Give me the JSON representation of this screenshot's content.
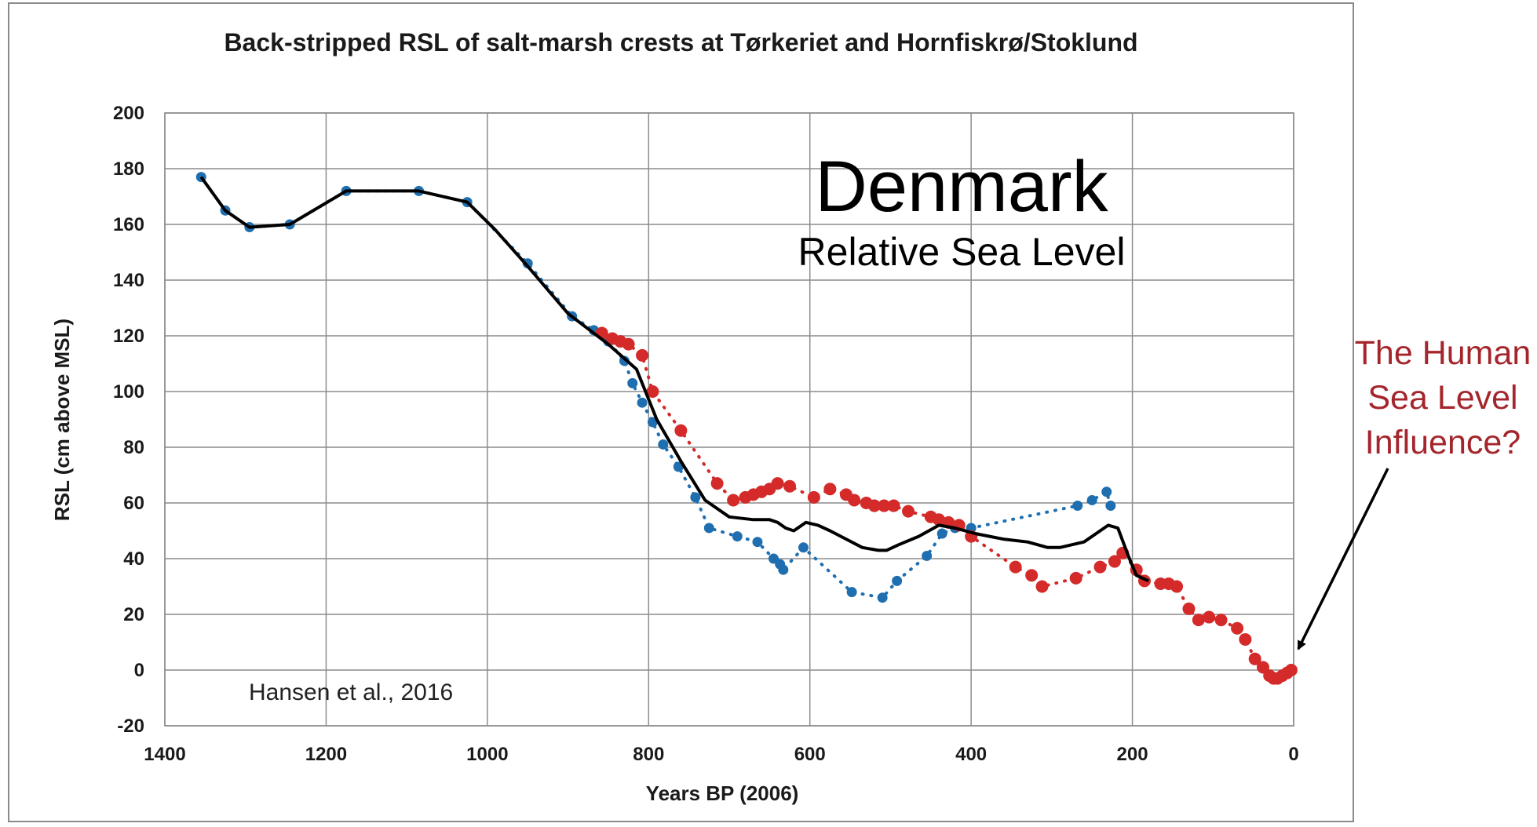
{
  "chart_data": {
    "type": "line",
    "title": "Back-stripped RSL of salt-marsh crests at Tørkeriet and Hornfiskrø/Stoklund",
    "xlabel": "Years BP (2006)",
    "ylabel": "RSL (cm above MSL)",
    "xlim": [
      1400,
      0
    ],
    "ylim": [
      -20,
      200
    ],
    "x_reversed": true,
    "x_ticks": [
      "1400",
      "1200",
      "1000",
      "800",
      "600",
      "400",
      "200",
      "0"
    ],
    "y_ticks": [
      "200",
      "180",
      "160",
      "140",
      "120",
      "100",
      "80",
      "60",
      "40",
      "20",
      "0",
      "-20"
    ],
    "grid": true,
    "series": [
      {
        "style": "dotted",
        "color": "#1f6fb0",
        "x": [
          1355,
          1325,
          1295,
          1245,
          1175,
          1085,
          1025,
          950,
          895,
          868,
          850,
          830,
          820,
          808,
          795,
          782,
          763,
          742,
          725,
          690,
          665,
          645,
          637,
          633,
          608,
          548,
          510,
          492,
          455,
          436,
          420,
          400,
          268,
          250,
          232,
          227
        ],
        "y": [
          177,
          165,
          159,
          160,
          172,
          172,
          168,
          146,
          127,
          122,
          118,
          111,
          103,
          96,
          89,
          81,
          73,
          62,
          51,
          48,
          46,
          40,
          38,
          36,
          44,
          28,
          26,
          32,
          41,
          49,
          51,
          51,
          59,
          61,
          64,
          59
        ]
      },
      {
        "style": "dotted",
        "color": "#d42a2a",
        "x": [
          858,
          845,
          835,
          825,
          808,
          795,
          760,
          715,
          695,
          680,
          670,
          660,
          650,
          640,
          625,
          595,
          575,
          555,
          545,
          530,
          520,
          508,
          496,
          478,
          450,
          440,
          428,
          415,
          400,
          345,
          325,
          312,
          270,
          240,
          222,
          212,
          195,
          185,
          165,
          155,
          145,
          130,
          118,
          105,
          90,
          70,
          60,
          48,
          38,
          30,
          25,
          20,
          14,
          8,
          3
        ],
        "y": [
          121,
          119,
          118,
          117,
          113,
          100,
          86,
          67,
          61,
          62,
          63,
          64,
          65,
          67,
          66,
          62,
          65,
          63,
          61,
          60,
          59,
          59,
          59,
          57,
          55,
          54,
          53,
          52,
          48,
          37,
          34,
          30,
          33,
          37,
          39,
          42,
          36,
          32,
          31,
          31,
          30,
          22,
          18,
          19,
          18,
          15,
          11,
          4,
          1,
          -2,
          -3,
          -3,
          -2,
          -1,
          0
        ]
      },
      {
        "style": "solid",
        "color": "#000000",
        "x": [
          1355,
          1325,
          1295,
          1245,
          1175,
          1085,
          1025,
          990,
          950,
          900,
          850,
          815,
          790,
          760,
          730,
          700,
          670,
          650,
          640,
          630,
          620,
          605,
          590,
          575,
          555,
          535,
          515,
          505,
          490,
          465,
          440,
          420,
          395,
          360,
          330,
          305,
          290,
          260,
          240,
          230,
          218,
          205,
          195,
          180
        ],
        "y": [
          177,
          165,
          159,
          160,
          172,
          172,
          168,
          158,
          145,
          128,
          117,
          108,
          90,
          75,
          61,
          55,
          54,
          54,
          53,
          51,
          50,
          53,
          52,
          50,
          47,
          44,
          43,
          43,
          45,
          48,
          52,
          51,
          49,
          47,
          46,
          44,
          44,
          46,
          50,
          52,
          51,
          41,
          34,
          32
        ]
      }
    ]
  },
  "overlay": {
    "title": "Denmark",
    "subtitle": "Relative Sea Level"
  },
  "source_note": "Hansen et al., 2016",
  "annotation": {
    "line1": "The Human",
    "line2": "Sea Level",
    "line3": "Influence?",
    "color": "#a4262c"
  }
}
